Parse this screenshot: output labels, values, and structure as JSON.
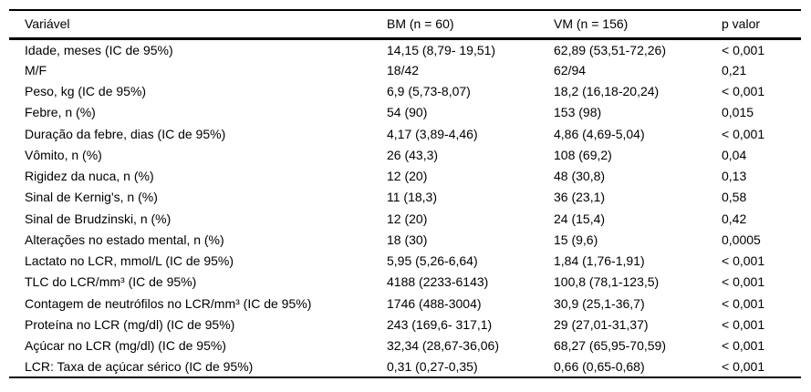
{
  "table": {
    "headers": [
      "Variável",
      "BM (n = 60)",
      "VM (n = 156)",
      "p valor"
    ],
    "rows": [
      {
        "variable": "Idade, meses (IC de 95%)",
        "bm": "14,15 (8,79- 19,51)",
        "vm": "62,89 (53,51-72,26)",
        "p": "< 0,001"
      },
      {
        "variable": "M/F",
        "bm": "18/42",
        "vm": "62/94",
        "p": "0,21"
      },
      {
        "variable": "Peso, kg (IC de 95%)",
        "bm": "6,9 (5,73-8,07)",
        "vm": "18,2 (16,18-20,24)",
        "p": "< 0,001"
      },
      {
        "variable": "Febre, n (%)",
        "bm": "54 (90)",
        "vm": "153 (98)",
        "p": "0,015"
      },
      {
        "variable": "Duração da febre, dias (IC de 95%)",
        "bm": "4,17 (3,89-4,46)",
        "vm": "4,86 (4,69-5,04)",
        "p": "< 0,001"
      },
      {
        "variable": "Vômito, n (%)",
        "bm": "26 (43,3)",
        "vm": "108 (69,2)",
        "p": "0,04"
      },
      {
        "variable": "Rigidez da nuca, n (%)",
        "bm": "12 (20)",
        "vm": "48 (30,8)",
        "p": "0,13"
      },
      {
        "variable": "Sinal de Kernig's, n (%)",
        "bm": "11 (18,3)",
        "vm": "36 (23,1)",
        "p": "0,58"
      },
      {
        "variable": "Sinal de Brudzinski, n (%)",
        "bm": "12 (20)",
        "vm": "24 (15,4)",
        "p": "0,42"
      },
      {
        "variable": "Alterações no estado mental, n (%)",
        "bm": "18 (30)",
        "vm": "15 (9,6)",
        "p": "0,0005"
      },
      {
        "variable": "Lactato no LCR, mmol/L (IC de 95%)",
        "bm": "5,95 (5,26-6,64)",
        "vm": "1,84 (1,76-1,91)",
        "p": "< 0,001"
      },
      {
        "variable": "TLC do LCR/mm³ (IC de 95%)",
        "bm": "4188 (2233-6143)",
        "vm": "100,8 (78,1-123,5)",
        "p": "< 0,001"
      },
      {
        "variable": "Contagem de neutrófilos no LCR/mm³ (IC de 95%)",
        "bm": "1746 (488-3004)",
        "vm": "30,9 (25,1-36,7)",
        "p": "< 0,001"
      },
      {
        "variable": "Proteína no LCR (mg/dl) (IC de 95%)",
        "bm": "243 (169,6- 317,1)",
        "vm": "29 (27,01-31,37)",
        "p": "< 0,001"
      },
      {
        "variable": "Açúcar no LCR (mg/dl) (IC de 95%)",
        "bm": "32,34 (28,67-36,06)",
        "vm": "68,27 (65,95-70,59)",
        "p": "< 0,001"
      },
      {
        "variable": "LCR: Taxa de açúcar sérico (IC de 95%)",
        "bm": "0,31 (0,27-0,35)",
        "vm": "0,66 (0,65-0,68)",
        "p": "< 0,001"
      }
    ]
  }
}
